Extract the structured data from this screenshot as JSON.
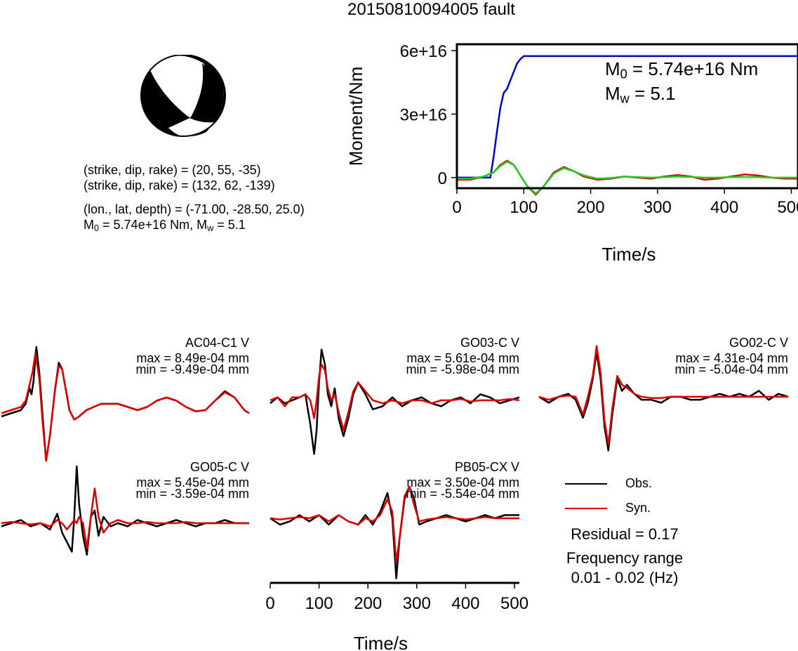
{
  "title": "20150810094005 fault",
  "mechanism": {
    "line1": "(strike, dip, rake) = (20, 55, -35)",
    "line2": "(strike, dip, rake) = (132, 62, -139)",
    "line3": "(lon., lat, depth) = (-71.00, -28.50, 25.0)",
    "line4_m0": "M",
    "line4_sub": "0",
    "line4_rest": " = 5.74e+16 Nm, M",
    "line4_sub2": "w",
    "line4_end": " = 5.1"
  },
  "moment_panel": {
    "m0_prefix": "M",
    "m0_sub": "0",
    "m0_value": " = 5.74e+16 Nm",
    "mw_prefix": "M",
    "mw_sub": "w",
    "mw_value": " = 5.1"
  },
  "waveform_xlabel": "Time/s",
  "legend": {
    "obs": "Obs.",
    "syn": "Syn.",
    "residual": "Residual = 0.17",
    "freq_title": "Frequency range",
    "freq_value": "0.01 - 0.02 (Hz)"
  },
  "colors": {
    "moment": "#0000cc",
    "obs": "#000000",
    "syn": "#dd0000",
    "green": "#22cc22"
  },
  "chart_data": [
    {
      "type": "line",
      "title": "",
      "xlabel": "Time/s",
      "ylabel": "Moment/Nm",
      "xlim": [
        0,
        510
      ],
      "ylim": [
        -5000000000000000.0,
        6.3e+16
      ],
      "x_ticks": [
        0,
        100,
        200,
        300,
        400,
        500
      ],
      "y_ticks": [
        0,
        3e+16,
        6e+16
      ],
      "y_tick_labels": [
        "0",
        "3e+16",
        "6e+16"
      ],
      "series": [
        {
          "color": "#0000cc",
          "x": [
            0,
            50,
            55,
            60,
            65,
            70,
            75,
            80,
            85,
            90,
            95,
            100,
            510
          ],
          "y": [
            0,
            0,
            1e+16,
            2.2e+16,
            3.3e+16,
            4e+16,
            4.2e+16,
            4.6e+16,
            5e+16,
            5.4e+16,
            5.6e+16,
            5.74e+16,
            5.74e+16
          ]
        },
        {
          "color": "#dd0000",
          "x": [
            0,
            20,
            40,
            55,
            65,
            75,
            85,
            95,
            105,
            118,
            130,
            145,
            160,
            175,
            190,
            210,
            230,
            250,
            270,
            290,
            310,
            330,
            350,
            370,
            390,
            410,
            430,
            450,
            470,
            490,
            510
          ],
          "y": [
            -1000000000000000.0,
            -1000000000000000.0,
            500000000000000.0,
            2500000000000000.0,
            6000000000000000.0,
            8000000000000000.0,
            6000000000000000.0,
            1000000000000000.0,
            -4000000000000000.0,
            -8000000000000000.0,
            -4000000000000000.0,
            2500000000000000.0,
            5000000000000000.0,
            3000000000000000.0,
            500000000000000.0,
            -1000000000000000.0,
            -500000000000000.0,
            500000000000000.0,
            0.0,
            -500000000000000.0,
            500000000000000.0,
            1200000000000000.0,
            500000000000000.0,
            -1000000000000000.0,
            -500000000000000.0,
            500000000000000.0,
            1500000000000000.0,
            1000000000000000.0,
            0.0,
            -500000000000000.0,
            -500000000000000.0
          ]
        },
        {
          "color": "#22cc22",
          "x": [
            0,
            20,
            40,
            55,
            65,
            75,
            85,
            95,
            105,
            118,
            130,
            145,
            160,
            175,
            190,
            210,
            230,
            250,
            270,
            290,
            310,
            330,
            350,
            370,
            390,
            410,
            430,
            450,
            470,
            490,
            510
          ],
          "y": [
            -500000000000000.0,
            -500000000000000.0,
            500000000000000.0,
            2500000000000000.0,
            5500000000000000.0,
            7500000000000000.0,
            6000000000000000.0,
            1000000000000000.0,
            -4000000000000000.0,
            -7500000000000000.0,
            -4000000000000000.0,
            2000000000000000.0,
            4500000000000000.0,
            3000000000000000.0,
            1000000000000000.0,
            -500000000000000.0,
            -200000000000000.0,
            500000000000000.0,
            200000000000000.0,
            0.0,
            200000000000000.0,
            500000000000000.0,
            300000000000000.0,
            0.0,
            0.0,
            200000000000000.0,
            300000000000000.0,
            200000000000000.0,
            0.0,
            0.0,
            0.0
          ]
        }
      ]
    },
    {
      "type": "line",
      "station": "AC04-C1 V",
      "max_label": "max = 8.49e-04 mm",
      "min_label": "min = -9.49e-04 mm",
      "xlim": [
        0,
        510
      ],
      "ylim": [
        -1,
        1
      ],
      "series": [
        {
          "name": "Obs.",
          "color": "#000000",
          "x": [
            0,
            20,
            40,
            50,
            58,
            62,
            66,
            72,
            78,
            85,
            92,
            100,
            110,
            118,
            125,
            132,
            140,
            150,
            160,
            175,
            190,
            205,
            220,
            240,
            260,
            280,
            300,
            320,
            340,
            360,
            380,
            400,
            420,
            440,
            460,
            480,
            500,
            510
          ],
          "y": [
            -0.2,
            -0.15,
            -0.1,
            0.0,
            0.25,
            0.15,
            0.35,
            0.9,
            0.5,
            -0.2,
            -0.9,
            -0.5,
            0.2,
            0.65,
            0.55,
            0.25,
            -0.1,
            -0.25,
            -0.2,
            -0.1,
            -0.05,
            0.0,
            0.0,
            0.0,
            -0.05,
            -0.1,
            -0.05,
            0.05,
            0.1,
            0.05,
            -0.05,
            -0.12,
            -0.1,
            0.05,
            0.2,
            0.1,
            -0.1,
            -0.15
          ]
        },
        {
          "name": "Syn.",
          "color": "#dd0000",
          "x": [
            0,
            20,
            40,
            50,
            58,
            64,
            70,
            78,
            85,
            92,
            100,
            110,
            118,
            125,
            132,
            140,
            150,
            160,
            175,
            190,
            205,
            220,
            240,
            260,
            280,
            300,
            320,
            340,
            360,
            380,
            400,
            420,
            440,
            460,
            480,
            500,
            510
          ],
          "y": [
            -0.15,
            -0.1,
            -0.05,
            0.05,
            0.3,
            0.5,
            0.8,
            0.4,
            -0.3,
            -0.9,
            -0.5,
            0.2,
            0.6,
            0.55,
            0.25,
            -0.1,
            -0.25,
            -0.2,
            -0.1,
            -0.05,
            0.0,
            0.0,
            0.0,
            -0.05,
            -0.1,
            -0.05,
            0.05,
            0.1,
            0.05,
            -0.05,
            -0.12,
            -0.1,
            0.05,
            0.18,
            0.1,
            -0.1,
            -0.15
          ]
        }
      ]
    },
    {
      "type": "line",
      "station": "GO03-C V",
      "max_label": "max = 5.61e-04 mm",
      "min_label": "min = -5.98e-04 mm",
      "xlim": [
        0,
        510
      ],
      "ylim": [
        -1,
        1
      ],
      "series": [
        {
          "name": "Obs.",
          "color": "#000000",
          "x": [
            0,
            15,
            30,
            45,
            60,
            72,
            82,
            90,
            95,
            100,
            105,
            112,
            118,
            125,
            132,
            140,
            150,
            160,
            170,
            180,
            195,
            210,
            230,
            250,
            270,
            290,
            310,
            330,
            350,
            370,
            390,
            410,
            430,
            450,
            470,
            490,
            510
          ],
          "y": [
            -0.05,
            0.05,
            -0.05,
            0.0,
            0.05,
            0.1,
            -0.4,
            -0.9,
            -0.5,
            0.3,
            0.85,
            0.6,
            0.1,
            -0.1,
            0.2,
            -0.3,
            -0.6,
            -0.3,
            0.1,
            0.3,
            0.1,
            -0.15,
            -0.1,
            0.05,
            -0.1,
            0.0,
            0.05,
            -0.05,
            -0.1,
            0.0,
            0.05,
            -0.05,
            0.1,
            0.05,
            -0.05,
            0.0,
            0.05
          ]
        },
        {
          "name": "Syn.",
          "color": "#dd0000",
          "x": [
            0,
            15,
            30,
            45,
            60,
            72,
            82,
            90,
            95,
            100,
            105,
            112,
            118,
            125,
            132,
            140,
            150,
            160,
            170,
            180,
            195,
            210,
            230,
            250,
            270,
            290,
            310,
            330,
            350,
            370,
            390,
            410,
            430,
            450,
            470,
            490,
            510
          ],
          "y": [
            0.0,
            0.05,
            -0.1,
            0.05,
            0.05,
            0.1,
            0.0,
            -0.3,
            0.0,
            0.4,
            0.6,
            0.5,
            0.2,
            0.0,
            0.1,
            -0.2,
            -0.5,
            -0.2,
            0.15,
            0.3,
            0.15,
            0.0,
            -0.05,
            0.0,
            -0.05,
            0.0,
            0.0,
            -0.05,
            0.0,
            0.0,
            0.02,
            -0.02,
            0.0,
            0.0,
            0.0,
            0.02,
            0.0
          ]
        }
      ]
    },
    {
      "type": "line",
      "station": "GO02-C V",
      "max_label": "max = 4.31e-04 mm",
      "min_label": "min = -5.04e-04 mm",
      "xlim": [
        0,
        510
      ],
      "ylim": [
        -1,
        1
      ],
      "series": [
        {
          "name": "Obs.",
          "color": "#000000",
          "x": [
            0,
            20,
            40,
            60,
            75,
            90,
            100,
            110,
            118,
            126,
            134,
            142,
            150,
            160,
            170,
            180,
            195,
            210,
            230,
            250,
            270,
            290,
            310,
            330,
            350,
            370,
            390,
            410,
            430,
            450,
            470,
            490,
            510
          ],
          "y": [
            0.0,
            -0.1,
            0.0,
            0.05,
            -0.05,
            -0.35,
            -0.1,
            0.3,
            0.75,
            0.3,
            -0.5,
            -0.9,
            -0.3,
            0.3,
            0.1,
            0.2,
            0.05,
            -0.05,
            -0.05,
            -0.1,
            0.0,
            0.0,
            -0.05,
            -0.05,
            0.0,
            0.05,
            0.0,
            0.05,
            0.0,
            0.1,
            -0.05,
            0.05,
            0.0
          ]
        },
        {
          "name": "Syn.",
          "color": "#dd0000",
          "x": [
            0,
            20,
            40,
            60,
            75,
            90,
            100,
            110,
            118,
            126,
            134,
            142,
            150,
            160,
            170,
            180,
            195,
            210,
            230,
            250,
            270,
            290,
            310,
            330,
            350,
            370,
            390,
            410,
            430,
            450,
            470,
            490,
            510
          ],
          "y": [
            0.0,
            -0.05,
            0.0,
            0.02,
            0.0,
            -0.3,
            0.0,
            0.35,
            0.85,
            0.4,
            -0.4,
            -0.8,
            -0.2,
            0.35,
            0.2,
            0.15,
            0.05,
            0.0,
            -0.02,
            -0.02,
            0.0,
            0.0,
            0.0,
            0.0,
            0.0,
            0.0,
            0.0,
            0.0,
            0.0,
            0.0,
            0.0,
            0.0,
            0.0
          ]
        }
      ]
    },
    {
      "type": "line",
      "station": "GO05-C V",
      "max_label": "max = 5.45e-04 mm",
      "min_label": "min = -3.59e-04 mm",
      "xlim": [
        0,
        510
      ],
      "ylim": [
        -1,
        1
      ],
      "series": [
        {
          "name": "Obs.",
          "color": "#000000",
          "x": [
            0,
            20,
            40,
            60,
            80,
            100,
            115,
            125,
            135,
            145,
            150,
            155,
            160,
            168,
            176,
            184,
            192,
            200,
            210,
            225,
            240,
            260,
            280,
            300,
            320,
            340,
            360,
            380,
            400,
            420,
            440,
            460,
            480,
            500,
            510
          ],
          "y": [
            -0.05,
            0.0,
            0.05,
            -0.05,
            0.0,
            -0.1,
            0.15,
            -0.15,
            -0.3,
            -0.45,
            0.1,
            0.9,
            0.3,
            -0.2,
            -0.5,
            0.1,
            0.2,
            -0.2,
            0.1,
            -0.05,
            0.0,
            -0.05,
            0.05,
            0.0,
            -0.05,
            0.0,
            0.05,
            0.0,
            -0.05,
            0.0,
            0.0,
            0.05,
            0.0,
            0.0,
            0.0
          ]
        },
        {
          "name": "Syn.",
          "color": "#dd0000",
          "x": [
            0,
            20,
            40,
            60,
            80,
            100,
            115,
            125,
            135,
            145,
            150,
            155,
            160,
            168,
            176,
            184,
            192,
            200,
            210,
            225,
            240,
            260,
            280,
            300,
            320,
            340,
            360,
            380,
            400,
            420,
            440,
            460,
            480,
            500,
            510
          ],
          "y": [
            0.0,
            0.02,
            0.0,
            -0.02,
            0.0,
            -0.05,
            0.05,
            0.0,
            -0.1,
            0.0,
            0.05,
            0.0,
            0.1,
            0.0,
            -0.4,
            0.1,
            0.55,
            0.1,
            -0.15,
            0.0,
            0.05,
            0.0,
            0.0,
            0.02,
            0.0,
            0.0,
            0.0,
            0.02,
            0.0,
            0.0,
            0.0,
            0.0,
            0.0,
            0.0,
            0.0
          ]
        }
      ]
    },
    {
      "type": "line",
      "station": "PB05-CX V",
      "max_label": "max = 3.50e-04 mm",
      "min_label": "min = -5.54e-04 mm",
      "xlim": [
        0,
        510
      ],
      "ylim": [
        -1,
        1
      ],
      "series": [
        {
          "name": "Obs.",
          "color": "#000000",
          "x": [
            0,
            20,
            40,
            60,
            80,
            100,
            120,
            140,
            160,
            180,
            195,
            210,
            225,
            240,
            250,
            258,
            265,
            275,
            285,
            295,
            305,
            320,
            340,
            360,
            380,
            400,
            420,
            440,
            460,
            480,
            500,
            510
          ],
          "y": [
            0.0,
            -0.1,
            -0.05,
            0.05,
            -0.05,
            0.05,
            -0.1,
            0.05,
            -0.05,
            -0.1,
            0.05,
            -0.1,
            0.1,
            0.4,
            0.0,
            -0.95,
            -0.3,
            0.3,
            0.5,
            0.3,
            -0.1,
            -0.05,
            0.0,
            0.05,
            0.0,
            -0.05,
            0.0,
            0.05,
            0.0,
            0.05,
            0.05,
            0.05
          ]
        },
        {
          "name": "Syn.",
          "color": "#dd0000",
          "x": [
            0,
            20,
            40,
            60,
            80,
            100,
            120,
            140,
            160,
            180,
            195,
            210,
            225,
            240,
            250,
            258,
            265,
            275,
            285,
            295,
            305,
            320,
            340,
            360,
            380,
            400,
            420,
            440,
            460,
            480,
            500,
            510
          ],
          "y": [
            0.0,
            -0.02,
            0.0,
            0.02,
            0.0,
            0.05,
            -0.05,
            0.05,
            -0.05,
            -0.1,
            0.0,
            -0.05,
            0.05,
            0.3,
            0.1,
            -0.7,
            -0.3,
            0.35,
            0.5,
            0.2,
            -0.05,
            -0.02,
            0.0,
            0.02,
            0.0,
            -0.02,
            0.0,
            0.02,
            0.0,
            0.0,
            0.0,
            0.0
          ]
        }
      ]
    }
  ],
  "waveform_axis": {
    "ticks": [
      0,
      100,
      200,
      300,
      400,
      500
    ]
  }
}
